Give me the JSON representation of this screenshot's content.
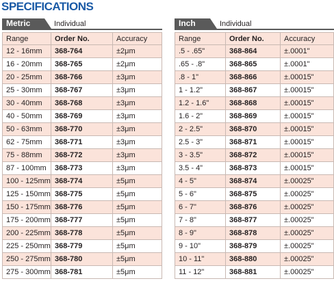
{
  "title": "SPECIFICATIONS",
  "tables": [
    {
      "tab": "Metric",
      "subtitle": "Individual",
      "header": [
        "Range",
        "Order No.",
        "Accuracy"
      ],
      "rows": [
        [
          "12 - 16mm",
          "368-764",
          "±2μm"
        ],
        [
          "16 - 20mm",
          "368-765",
          "±2μm"
        ],
        [
          "20 - 25mm",
          "368-766",
          "±3μm"
        ],
        [
          "25 - 30mm",
          "368-767",
          "±3μm"
        ],
        [
          "30 - 40mm",
          "368-768",
          "±3μm"
        ],
        [
          "40 - 50mm",
          "368-769",
          "±3μm"
        ],
        [
          "50 - 63mm",
          "368-770",
          "±3μm"
        ],
        [
          "62 - 75mm",
          "368-771",
          "±3μm"
        ],
        [
          "75 - 88mm",
          "368-772",
          "±3μm"
        ],
        [
          "87 - 100mm",
          "368-773",
          "±3μm"
        ],
        [
          "100 - 125mm",
          "368-774",
          "±5μm"
        ],
        [
          "125 - 150mm",
          "368-775",
          "±5μm"
        ],
        [
          "150 - 175mm",
          "368-776",
          "±5μm"
        ],
        [
          "175 - 200mm",
          "368-777",
          "±5μm"
        ],
        [
          "200 - 225mm",
          "368-778",
          "±5μm"
        ],
        [
          "225 - 250mm",
          "368-779",
          "±5μm"
        ],
        [
          "250 - 275mm",
          "368-780",
          "±5μm"
        ],
        [
          "275 - 300mm",
          "368-781",
          "±5μm"
        ]
      ]
    },
    {
      "tab": "Inch",
      "subtitle": "Individual",
      "header": [
        "Range",
        "Order No.",
        "Accuracy"
      ],
      "rows": [
        [
          ".5 - .65\"",
          "368-864",
          "±.0001\""
        ],
        [
          ".65 - .8\"",
          "368-865",
          "±.0001\""
        ],
        [
          ".8 - 1\"",
          "368-866",
          "±.00015\""
        ],
        [
          "1 - 1.2\"",
          "368-867",
          "±.00015\""
        ],
        [
          "1.2 - 1.6\"",
          "368-868",
          "±.00015\""
        ],
        [
          "1.6 - 2\"",
          "368-869",
          "±.00015\""
        ],
        [
          "2 - 2.5\"",
          "368-870",
          "±.00015\""
        ],
        [
          "2.5 - 3\"",
          "368-871",
          "±.00015\""
        ],
        [
          "3 - 3.5\"",
          "368-872",
          "±.00015\""
        ],
        [
          "3.5 - 4\"",
          "368-873",
          "±.00015\""
        ],
        [
          "4 - 5\"",
          "368-874",
          "±.00025\""
        ],
        [
          "5 - 6\"",
          "368-875",
          "±.00025\""
        ],
        [
          "6 - 7\"",
          "368-876",
          "±.00025\""
        ],
        [
          "7 - 8\"",
          "368-877",
          "±.00025\""
        ],
        [
          "8 - 9\"",
          "368-878",
          "±.00025\""
        ],
        [
          "9 - 10\"",
          "368-879",
          "±.00025\""
        ],
        [
          "10 - 11\"",
          "368-880",
          "±.00025\""
        ],
        [
          "11 - 12\"",
          "368-881",
          "±.00025\""
        ]
      ]
    }
  ]
}
